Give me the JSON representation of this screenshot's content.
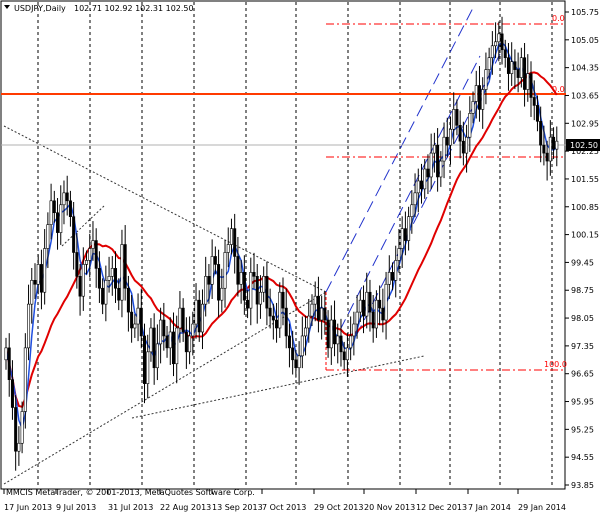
{
  "header": {
    "symbol": "USDJPY,Daily",
    "ohlc": "102.71 102.92 102.31 102.50"
  },
  "footer": {
    "copyright": "MMCIS MetaTrader, © 2001-2013, MetaQuotes Software Corp."
  },
  "colors": {
    "background": "#ffffff",
    "candles": "#000000",
    "fast_ma": "#1f4fe0",
    "slow_ma": "#e00000",
    "horizontal_line": "#ff3a00",
    "fib": "#ff0000",
    "channel": "#2233cc",
    "trendline": "#333333",
    "grid": "#000000",
    "price_label_bg": "#000000",
    "price_label_text": "#ffffff"
  },
  "chart_data": {
    "type": "candlestick",
    "symbol": "USDJPY",
    "timeframe": "Daily",
    "ylim": [
      93.85,
      106.0
    ],
    "y_ticks": [
      "105.75",
      "105.05",
      "104.35",
      "103.65",
      "102.95",
      "102.25",
      "101.55",
      "100.85",
      "100.15",
      "99.45",
      "98.75",
      "98.05",
      "97.35",
      "96.65",
      "95.95",
      "95.25",
      "94.55",
      "93.85"
    ],
    "x_labels": [
      "17 Jun 2013",
      "9 Jul 2013",
      "31 Jul 2013",
      "22 Aug 2013",
      "13 Sep 2013",
      "7 Oct 2013",
      "29 Oct 2013",
      "20 Nov 2013",
      "12 Dec 2013",
      "7 Jan 2014",
      "29 Jan 2014"
    ],
    "current_price": "102.50",
    "horizontal_level": 103.7,
    "fib_levels": [
      {
        "label": "0.0",
        "value": 105.28
      },
      {
        "label": "0.0",
        "value": 103.75
      },
      {
        "label": "100.0",
        "value": 96.95
      }
    ],
    "series": [
      {
        "name": "close",
        "values": [
          97.3,
          96.5,
          95.8,
          94.7,
          94.9,
          95.7,
          97.3,
          98.4,
          99.0,
          98.9,
          99.4,
          98.7,
          99.8,
          100.4,
          101.0,
          100.7,
          100.2,
          100.9,
          101.2,
          101.0,
          100.6,
          99.7,
          99.1,
          98.6,
          99.4,
          99.5,
          99.8,
          100.0,
          99.3,
          98.8,
          98.4,
          99.0,
          99.1,
          99.3,
          98.8,
          98.5,
          99.9,
          98.8,
          98.2,
          97.8,
          97.9,
          98.3,
          97.6,
          96.4,
          97.2,
          97.8,
          96.8,
          97.4,
          98.0,
          97.6,
          97.3,
          97.7,
          96.9,
          97.8,
          98.3,
          97.7,
          97.2,
          97.6,
          97.9,
          98.5,
          97.7,
          98.4,
          99.1,
          98.9,
          99.6,
          99.4,
          98.5,
          98.8,
          99.7,
          99.9,
          100.3,
          99.6,
          98.9,
          99.2,
          98.5,
          98.3,
          99.2,
          99.1,
          98.4,
          98.7,
          99.1,
          98.3,
          98.1,
          98.0,
          97.8,
          98.7,
          98.3,
          97.6,
          97.3,
          97.0,
          96.8,
          97.1,
          97.6,
          97.8,
          98.1,
          98.4,
          98.6,
          98.0,
          98.3,
          98.0,
          97.3,
          98.0,
          97.4,
          97.6,
          97.2,
          97.0,
          97.3,
          97.6,
          97.9,
          98.2,
          98.5,
          98.1,
          98.7,
          98.2,
          97.8,
          98.5,
          98.3,
          98.0,
          98.9,
          99.2,
          99.0,
          99.5,
          99.8,
          100.3,
          100.0,
          100.6,
          100.9,
          101.2,
          101.5,
          101.3,
          101.8,
          101.6,
          102.2,
          102.4,
          101.6,
          102.0,
          102.6,
          102.4,
          102.8,
          103.3,
          102.9,
          102.5,
          102.2,
          102.6,
          103.2,
          103.5,
          103.9,
          103.3,
          103.8,
          104.3,
          104.6,
          104.9,
          105.0,
          105.2,
          104.8,
          104.6,
          104.2,
          104.5,
          104.3,
          104.1,
          104.6,
          103.8,
          104.2,
          103.6,
          103.4,
          103.0,
          102.4,
          102.2,
          102.0,
          102.6,
          102.3,
          102.5
        ]
      },
      {
        "name": "MA fast"
      },
      {
        "name": "MA slow"
      }
    ]
  }
}
